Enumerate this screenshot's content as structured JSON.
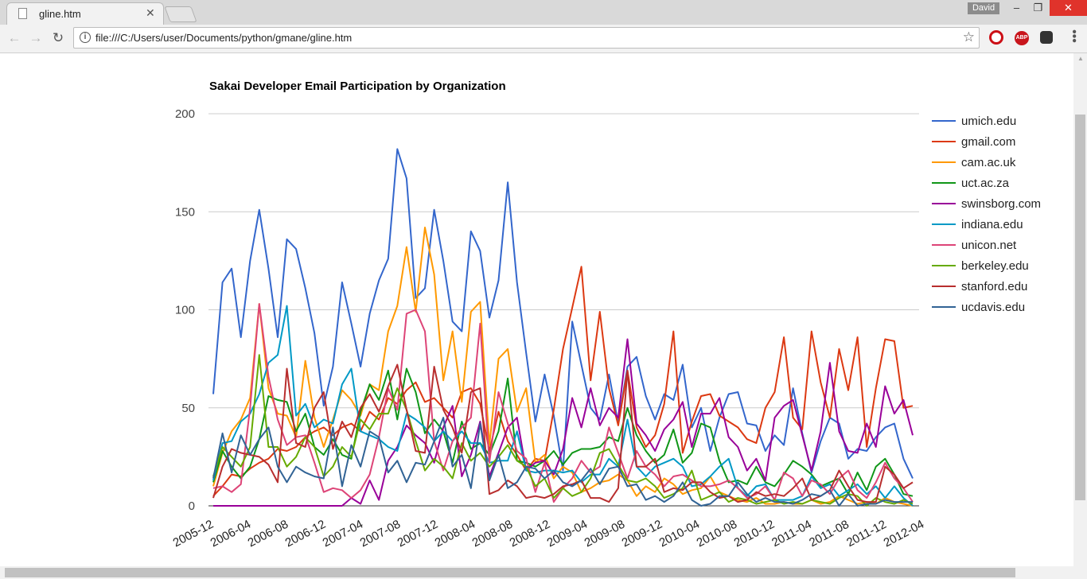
{
  "browser": {
    "tab_title": "gline.htm",
    "user_name": "David",
    "url": "file:///C:/Users/user/Documents/python/gmane/gline.htm",
    "icons": {
      "back": "back-arrow-icon",
      "forward": "forward-arrow-icon",
      "reload": "reload-icon",
      "info": "info-icon",
      "star": "bookmark-star-icon",
      "opera": "opera-icon",
      "adblock": "adblock-icon",
      "ghostery": "ghostery-icon",
      "menu": "menu-dots-icon"
    }
  },
  "chart_data": {
    "type": "line",
    "title": "Sakai Developer Email Participation by Organization",
    "xlabel": "",
    "ylabel": "",
    "ylim": [
      0,
      200
    ],
    "y_ticks": [
      "200",
      "150",
      "100",
      "50",
      "0"
    ],
    "x_tick_labels": [
      "2005-12",
      "2006-04",
      "2006-08",
      "2006-12",
      "2007-04",
      "2007-08",
      "2007-12",
      "2008-04",
      "2008-08",
      "2008-12",
      "2009-04",
      "2009-08",
      "2009-12",
      "2010-04",
      "2010-08",
      "2010-12",
      "2011-04",
      "2011-08",
      "2011-12",
      "2012-04"
    ],
    "grid": true,
    "legend_position": "right",
    "series": [
      {
        "name": "umich.edu",
        "color": "#3366cc",
        "values": [
          57,
          114,
          121,
          86,
          125,
          151,
          121,
          86,
          136,
          131,
          111,
          88,
          51,
          71,
          114,
          93,
          71,
          98,
          115,
          126,
          182,
          167,
          106,
          111,
          151,
          125,
          94,
          89,
          140,
          130,
          96,
          115,
          165,
          114,
          78,
          43,
          67,
          46,
          18,
          94,
          72,
          50,
          44,
          67,
          42,
          71,
          76,
          56,
          44,
          57,
          54,
          72,
          40,
          50,
          28,
          45,
          57,
          58,
          42,
          41,
          28,
          36,
          31,
          60,
          37,
          17,
          33,
          45,
          42,
          24,
          29,
          28,
          35,
          40,
          42,
          24,
          14
        ]
      },
      {
        "name": "gmail.com",
        "color": "#dc3912",
        "values": [
          5,
          10,
          16,
          15,
          19,
          22,
          24,
          29,
          28,
          30,
          35,
          38,
          40,
          36,
          40,
          42,
          38,
          48,
          44,
          55,
          52,
          59,
          63,
          53,
          55,
          50,
          45,
          58,
          60,
          52,
          28,
          48,
          33,
          26,
          18,
          24,
          23,
          49,
          80,
          101,
          122,
          64,
          99,
          60,
          41,
          69,
          40,
          30,
          36,
          52,
          89,
          27,
          43,
          56,
          57,
          46,
          43,
          40,
          34,
          32,
          50,
          58,
          86,
          45,
          39,
          89,
          63,
          45,
          80,
          59,
          86,
          30,
          60,
          85,
          84,
          50,
          51
        ]
      },
      {
        "name": "cam.ac.uk",
        "color": "#ff9900",
        "values": [
          10,
          27,
          38,
          44,
          55,
          103,
          60,
          47,
          46,
          35,
          74,
          45,
          30,
          44,
          59,
          54,
          46,
          62,
          59,
          89,
          102,
          132,
          99,
          142,
          118,
          64,
          89,
          53,
          99,
          104,
          31,
          75,
          80,
          48,
          60,
          22,
          26,
          14,
          20,
          17,
          7,
          9,
          12,
          13,
          16,
          13,
          5,
          10,
          7,
          14,
          11,
          6,
          8,
          9,
          15,
          7,
          5,
          3,
          2,
          4,
          1,
          1,
          2,
          1,
          1,
          3,
          1,
          2,
          5,
          3,
          1,
          2,
          1,
          4,
          2,
          1,
          0
        ]
      },
      {
        "name": "uct.ac.za",
        "color": "#109618",
        "values": [
          12,
          28,
          20,
          14,
          20,
          34,
          56,
          54,
          53,
          38,
          47,
          30,
          26,
          34,
          26,
          24,
          48,
          62,
          54,
          69,
          44,
          70,
          58,
          37,
          44,
          38,
          22,
          43,
          29,
          32,
          26,
          38,
          65,
          23,
          22,
          20,
          23,
          28,
          21,
          27,
          29,
          29,
          30,
          35,
          33,
          50,
          36,
          28,
          22,
          26,
          39,
          22,
          27,
          42,
          40,
          23,
          12,
          13,
          11,
          20,
          12,
          10,
          16,
          23,
          20,
          16,
          10,
          12,
          14,
          6,
          17,
          8,
          20,
          24,
          16,
          6,
          5
        ]
      },
      {
        "name": "swinsborg.com",
        "color": "#990099",
        "values": [
          0,
          0,
          0,
          0,
          0,
          0,
          0,
          0,
          0,
          0,
          0,
          0,
          0,
          0,
          0,
          4,
          1,
          13,
          3,
          23,
          30,
          41,
          36,
          32,
          22,
          40,
          51,
          15,
          26,
          43,
          15,
          27,
          40,
          45,
          18,
          22,
          23,
          16,
          29,
          55,
          40,
          60,
          41,
          50,
          45,
          85,
          42,
          36,
          28,
          39,
          44,
          53,
          30,
          47,
          47,
          55,
          35,
          30,
          18,
          24,
          13,
          45,
          51,
          54,
          36,
          18,
          38,
          73,
          38,
          28,
          27,
          42,
          30,
          61,
          47,
          54,
          36
        ]
      },
      {
        "name": "indiana.edu",
        "color": "#0099c6",
        "values": [
          13,
          32,
          33,
          43,
          47,
          57,
          73,
          77,
          102,
          46,
          52,
          40,
          44,
          42,
          62,
          70,
          38,
          36,
          34,
          30,
          28,
          47,
          44,
          40,
          33,
          38,
          33,
          38,
          32,
          32,
          22,
          23,
          23,
          38,
          18,
          17,
          18,
          18,
          17,
          18,
          12,
          16,
          16,
          24,
          20,
          44,
          20,
          15,
          20,
          22,
          24,
          20,
          10,
          11,
          15,
          20,
          24,
          9,
          5,
          10,
          11,
          3,
          3,
          3,
          5,
          15,
          9,
          11,
          5,
          8,
          11,
          6,
          10,
          4,
          10,
          4,
          0
        ]
      },
      {
        "name": "unicon.net",
        "color": "#dd4477",
        "values": [
          9,
          10,
          7,
          11,
          50,
          103,
          66,
          44,
          31,
          35,
          36,
          22,
          7,
          9,
          8,
          4,
          8,
          16,
          35,
          60,
          49,
          98,
          100,
          89,
          33,
          18,
          33,
          40,
          45,
          93,
          22,
          58,
          42,
          28,
          24,
          7,
          22,
          2,
          9,
          14,
          23,
          17,
          20,
          40,
          27,
          14,
          28,
          20,
          16,
          10,
          15,
          16,
          13,
          10,
          10,
          11,
          13,
          9,
          4,
          6,
          10,
          3,
          17,
          14,
          5,
          13,
          11,
          6,
          14,
          18,
          8,
          4,
          12,
          22,
          14,
          9,
          2
        ]
      },
      {
        "name": "berkeley.edu",
        "color": "#66aa00",
        "values": [
          15,
          30,
          25,
          20,
          30,
          77,
          30,
          30,
          20,
          25,
          35,
          30,
          15,
          20,
          30,
          25,
          44,
          39,
          47,
          47,
          60,
          49,
          33,
          18,
          24,
          20,
          14,
          32,
          23,
          27,
          20,
          25,
          31,
          23,
          20,
          10,
          14,
          4,
          9,
          5,
          7,
          14,
          27,
          29,
          21,
          13,
          12,
          14,
          10,
          4,
          6,
          9,
          18,
          3,
          5,
          7,
          2,
          4,
          3,
          1,
          2,
          3,
          1,
          2,
          1,
          3,
          2,
          1,
          4,
          6,
          5,
          0,
          4,
          2,
          1,
          3,
          1
        ]
      },
      {
        "name": "stanford.edu",
        "color": "#b82e2e",
        "values": [
          4,
          20,
          29,
          27,
          26,
          25,
          21,
          12,
          70,
          32,
          30,
          50,
          58,
          29,
          43,
          35,
          50,
          57,
          48,
          61,
          72,
          49,
          28,
          27,
          71,
          49,
          40,
          27,
          58,
          60,
          6,
          8,
          13,
          10,
          4,
          5,
          4,
          6,
          10,
          11,
          13,
          4,
          4,
          2,
          9,
          69,
          20,
          20,
          24,
          7,
          9,
          8,
          12,
          12,
          7,
          4,
          5,
          2,
          3,
          7,
          5,
          6,
          5,
          9,
          14,
          3,
          5,
          8,
          18,
          10,
          3,
          2,
          2,
          20,
          16,
          9,
          12
        ]
      },
      {
        "name": "ucdavis.edu",
        "color": "#316395",
        "values": [
          14,
          37,
          17,
          36,
          26,
          34,
          40,
          20,
          12,
          20,
          17,
          15,
          14,
          40,
          10,
          31,
          20,
          38,
          35,
          17,
          23,
          12,
          22,
          21,
          33,
          45,
          20,
          26,
          9,
          42,
          13,
          26,
          9,
          12,
          20,
          19,
          14,
          18,
          12,
          10,
          13,
          19,
          11,
          19,
          20,
          10,
          11,
          3,
          5,
          2,
          5,
          12,
          3,
          0,
          1,
          5,
          5,
          12,
          6,
          2,
          4,
          2,
          2,
          1,
          3,
          6,
          5,
          8,
          0,
          6,
          0,
          1,
          1,
          3,
          2,
          2,
          2
        ]
      }
    ]
  }
}
